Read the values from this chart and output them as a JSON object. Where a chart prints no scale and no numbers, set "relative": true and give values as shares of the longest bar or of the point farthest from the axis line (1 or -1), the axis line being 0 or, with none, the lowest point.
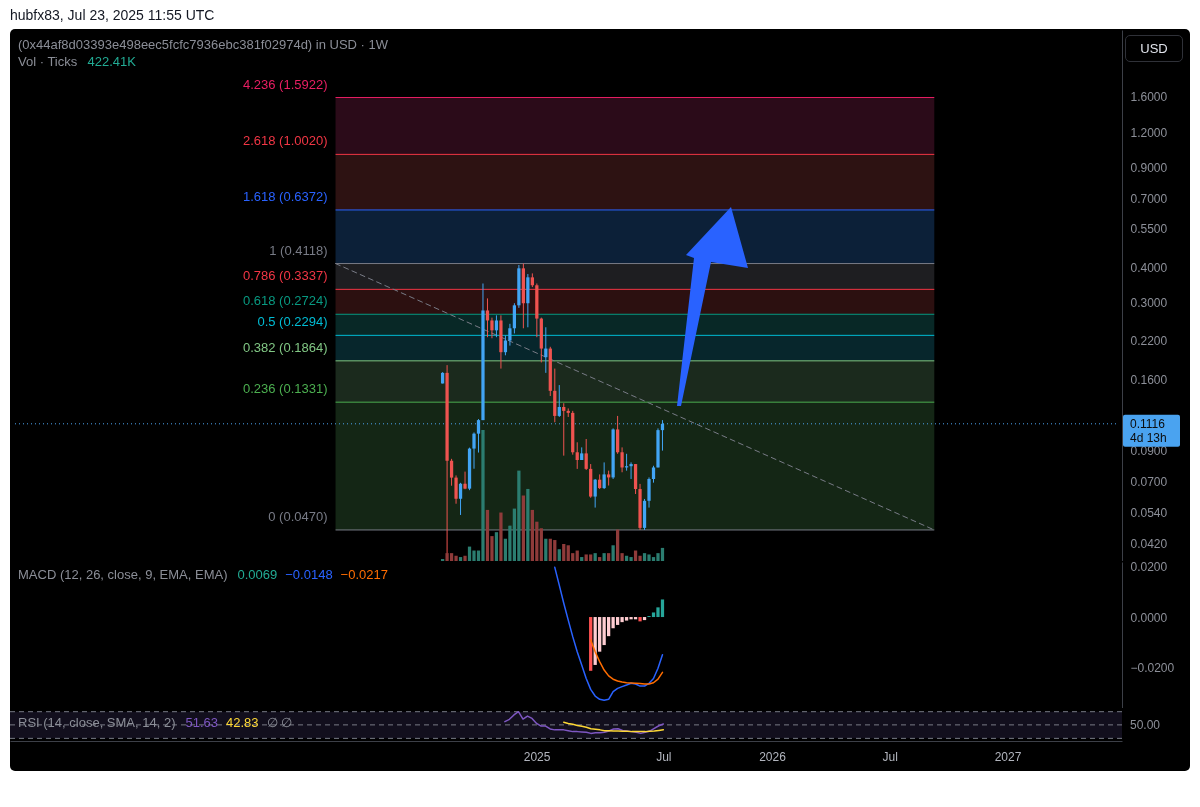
{
  "chart_data": [
    {
      "type": "candlestick",
      "title": "(0x44af8d03393e498eec5fcfc7936ebc381f02974d) in USD · 1W",
      "ylabel": "USD",
      "annotations": [
        "hubfx83, Jul 23, 2025 11:55 UTC",
        "4d 13h"
      ],
      "x": [
        "2024-08-12",
        "2024-08-19",
        "2024-08-26",
        "2024-09-02",
        "2024-09-09",
        "2024-09-16",
        "2024-09-23",
        "2024-09-30",
        "2024-10-07",
        "2024-10-14",
        "2024-10-21",
        "2024-10-28",
        "2024-11-04",
        "2024-11-11",
        "2024-11-18",
        "2024-11-25",
        "2024-12-02",
        "2024-12-09",
        "2024-12-16",
        "2024-12-23",
        "2024-12-30",
        "2025-01-06",
        "2025-01-13",
        "2025-01-20",
        "2025-01-27",
        "2025-02-03",
        "2025-02-10",
        "2025-02-17",
        "2025-02-24",
        "2025-03-03",
        "2025-03-10",
        "2025-03-17",
        "2025-03-24",
        "2025-03-31",
        "2025-04-07",
        "2025-04-14",
        "2025-04-21",
        "2025-04-28",
        "2025-05-05",
        "2025-05-12",
        "2025-05-19",
        "2025-05-26",
        "2025-06-02",
        "2025-06-09",
        "2025-06-16",
        "2025-06-23",
        "2025-06-30",
        "2025-07-07",
        "2025-07-14",
        "2025-07-21"
      ],
      "ohlc": [
        [
          0.155,
          0.17,
          0.155,
          0.169
        ],
        [
          0.169,
          0.18,
          0.0365,
          0.0826
        ],
        [
          0.0826,
          0.0839,
          0.0674,
          0.072
        ],
        [
          0.072,
          0.0733,
          0.0582,
          0.0606
        ],
        [
          0.0606,
          0.069,
          0.0531,
          0.0685
        ],
        [
          0.0685,
          0.0756,
          0.0655,
          0.0658
        ],
        [
          0.0658,
          0.0919,
          0.065,
          0.0912
        ],
        [
          0.0912,
          0.104,
          0.0774,
          0.103
        ],
        [
          0.103,
          0.116,
          0.0883,
          0.115
        ],
        [
          0.115,
          0.35,
          0.115,
          0.281
        ],
        [
          0.281,
          0.31,
          0.226,
          0.259
        ],
        [
          0.259,
          0.265,
          0.224,
          0.239
        ],
        [
          0.239,
          0.27,
          0.226,
          0.259
        ],
        [
          0.259,
          0.27,
          0.175,
          0.2
        ],
        [
          0.2,
          0.229,
          0.195,
          0.22
        ],
        [
          0.22,
          0.252,
          0.211,
          0.243
        ],
        [
          0.243,
          0.298,
          0.233,
          0.293
        ],
        [
          0.293,
          0.407,
          0.287,
          0.396
        ],
        [
          0.396,
          0.4118,
          0.243,
          0.298
        ],
        [
          0.298,
          0.378,
          0.245,
          0.368
        ],
        [
          0.368,
          0.38,
          0.34,
          0.345
        ],
        [
          0.345,
          0.35,
          0.226,
          0.263
        ],
        [
          0.263,
          0.265,
          0.184,
          0.206
        ],
        [
          0.192,
          0.245,
          0.169,
          0.206
        ],
        [
          0.206,
          0.209,
          0.14,
          0.146
        ],
        [
          0.146,
          0.175,
          0.113,
          0.119
        ],
        [
          0.119,
          0.153,
          0.118,
          0.128
        ],
        [
          0.128,
          0.132,
          0.0861,
          0.124
        ],
        [
          0.124,
          0.1265,
          0.118,
          0.122
        ],
        [
          0.122,
          0.124,
          0.0868,
          0.0885
        ],
        [
          0.0885,
          0.096,
          0.0773,
          0.0831
        ],
        [
          0.0831,
          0.0921,
          0.0831,
          0.0877
        ],
        [
          0.0877,
          0.0986,
          0.0766,
          0.0773
        ],
        [
          0.0773,
          0.0804,
          0.0611,
          0.0617
        ],
        [
          0.0617,
          0.0712,
          0.0564,
          0.0708
        ],
        [
          0.0708,
          0.0739,
          0.0656,
          0.0661
        ],
        [
          0.0661,
          0.0815,
          0.0656,
          0.0739
        ],
        [
          0.0739,
          0.0762,
          0.0675,
          0.0721
        ],
        [
          0.0721,
          0.1075,
          0.0712,
          0.1066
        ],
        [
          0.1066,
          0.119,
          0.0874,
          0.0885
        ],
        [
          0.0885,
          0.0921,
          0.0752,
          0.0782
        ],
        [
          0.0782,
          0.0874,
          0.0762,
          0.079
        ],
        [
          0.079,
          0.0815,
          0.0712,
          0.0804
        ],
        [
          0.0804,
          0.0804,
          0.063,
          0.0656
        ],
        [
          0.0656,
          0.0684,
          0.047,
          0.0478
        ],
        [
          0.0478,
          0.0605,
          0.047,
          0.0596
        ],
        [
          0.0596,
          0.0721,
          0.0564,
          0.0712
        ],
        [
          0.0712,
          0.0793,
          0.0691,
          0.0782
        ],
        [
          0.0782,
          0.1075,
          0.0782,
          0.106
        ],
        [
          0.106,
          0.115,
          0.0897,
          0.1116
        ]
      ],
      "colors": [
        "#42a5f5",
        "#ef5350",
        "#ef5350",
        "#ef5350",
        "#42a5f5",
        "#ef5350",
        "#42a5f5",
        "#42a5f5",
        "#42a5f5",
        "#42a5f5",
        "#ef5350",
        "#ef5350",
        "#42a5f5",
        "#ef5350",
        "#42a5f5",
        "#42a5f5",
        "#42a5f5",
        "#42a5f5",
        "#ef5350",
        "#42a5f5",
        "#ef5350",
        "#ef5350",
        "#ef5350",
        "#42a5f5",
        "#ef5350",
        "#ef5350",
        "#42a5f5",
        "#ef5350",
        "#ef5350",
        "#ef5350",
        "#ef5350",
        "#42a5f5",
        "#ef5350",
        "#ef5350",
        "#42a5f5",
        "#ef5350",
        "#42a5f5",
        "#ef5350",
        "#42a5f5",
        "#ef5350",
        "#ef5350",
        "#42a5f5",
        "#42a5f5",
        "#ef5350",
        "#ef5350",
        "#42a5f5",
        "#42a5f5",
        "#42a5f5",
        "#42a5f5",
        "#42a5f5"
      ],
      "series": [
        {
          "type": "line",
          "x": [
            "2024-02-27",
            "2026-09-18"
          ],
          "values": [
            0.4118,
            0.047
          ],
          "color": "#787b86",
          "line_style": "dashed"
        }
      ],
      "xlim": [
        "2022-10-15",
        "2027-06-30"
      ],
      "ylim": [
        0.0365,
        2.76
      ],
      "log": true,
      "tick_labels": "y",
      "yticks": [
        {
          "value": 1.6,
          "label": "1.6000"
        },
        {
          "value": 1.2,
          "label": "1.2000"
        },
        {
          "value": 0.9,
          "label": "0.9000"
        },
        {
          "value": 0.7,
          "label": "0.7000"
        },
        {
          "value": 0.55,
          "label": "0.5500"
        },
        {
          "value": 0.4,
          "label": "0.4000"
        },
        {
          "value": 0.3,
          "label": "0.3000"
        },
        {
          "value": 0.22,
          "label": "0.2200"
        },
        {
          "value": 0.16,
          "label": "0.1600"
        },
        {
          "value": 0.09,
          "label": "0.0900"
        },
        {
          "value": 0.07,
          "label": "0.0700"
        },
        {
          "value": 0.054,
          "label": "0.0540"
        },
        {
          "value": 0.042,
          "label": "0.0420"
        }
      ],
      "bands": [
        {
          "axis": "y",
          "from": 1.002,
          "to": 1.5922,
          "color": "#2b0b19"
        },
        {
          "axis": "y",
          "from": 0.6372,
          "to": 1.002,
          "color": "#2d1212"
        },
        {
          "axis": "y",
          "from": 0.4118,
          "to": 0.6372,
          "color": "#0c2038"
        },
        {
          "axis": "y",
          "from": 0.3337,
          "to": 0.4118,
          "color": "#1e1e21"
        },
        {
          "axis": "y",
          "from": 0.2724,
          "to": 0.3337,
          "color": "#2c1010"
        },
        {
          "axis": "y",
          "from": 0.2294,
          "to": 0.2724,
          "color": "#082826"
        },
        {
          "axis": "y",
          "from": 0.1864,
          "to": 0.2294,
          "color": "#07262c"
        },
        {
          "axis": "y",
          "from": 0.1331,
          "to": 0.1864,
          "color": "#1b2a1d"
        },
        {
          "axis": "y",
          "from": 0.047,
          "to": 0.1331,
          "color": "#142615"
        }
      ],
      "ref_lines": [
        {
          "axis": "y",
          "value": 1.5922,
          "label": "4.236 (1.5922)",
          "color": "#e91e63"
        },
        {
          "axis": "y",
          "value": 1.002,
          "label": "2.618 (1.0020)",
          "color": "#f23645"
        },
        {
          "axis": "y",
          "value": 0.6372,
          "label": "1.618 (0.6372)",
          "color": "#2962ff"
        },
        {
          "axis": "y",
          "value": 0.4118,
          "label": "1 (0.4118)",
          "color": "#787b86"
        },
        {
          "axis": "y",
          "value": 0.3337,
          "label": "0.786 (0.3337)",
          "color": "#f23645"
        },
        {
          "axis": "y",
          "value": 0.2724,
          "label": "0.618 (0.2724)",
          "color": "#089981"
        },
        {
          "axis": "y",
          "value": 0.2294,
          "label": "0.5 (0.2294)",
          "color": "#00bcd4"
        },
        {
          "axis": "y",
          "value": 0.1864,
          "label": "0.382 (0.1864)",
          "color": "#81c784"
        },
        {
          "axis": "y",
          "value": 0.1331,
          "label": "0.236 (0.1331)",
          "color": "#4caf50"
        },
        {
          "axis": "y",
          "value": 0.047,
          "label": "0 (0.0470)",
          "color": "#787b86"
        },
        {
          "axis": "y",
          "value": 0.1116,
          "label": "0.1116",
          "color": "#4aa3f0",
          "line_style": "dotted"
        }
      ]
    },
    {
      "type": "bar",
      "relative": true,
      "title": "Vol · Ticks",
      "tick_labels": false,
      "xlim": [
        "2022-10-15",
        "2027-06-30"
      ],
      "series": [
        {
          "name": "422.41K",
          "color": "#22ab94",
          "x": [
            "2024-08-12",
            "2024-08-19",
            "2024-08-26",
            "2024-09-02",
            "2024-09-09",
            "2024-09-16",
            "2024-09-23",
            "2024-09-30",
            "2024-10-07",
            "2024-10-14",
            "2024-10-21",
            "2024-10-28",
            "2024-11-04",
            "2024-11-11",
            "2024-11-18",
            "2024-11-25",
            "2024-12-02",
            "2024-12-09",
            "2024-12-16",
            "2024-12-23",
            "2024-12-30",
            "2025-01-06",
            "2025-01-13",
            "2025-01-20",
            "2025-01-27",
            "2025-02-03",
            "2025-02-10",
            "2025-02-17",
            "2025-02-24",
            "2025-03-03",
            "2025-03-10",
            "2025-03-17",
            "2025-03-24",
            "2025-03-31",
            "2025-04-07",
            "2025-04-14",
            "2025-04-21",
            "2025-04-28",
            "2025-05-05",
            "2025-05-12",
            "2025-05-19",
            "2025-05-26",
            "2025-06-02",
            "2025-06-09",
            "2025-06-16",
            "2025-06-23",
            "2025-06-30",
            "2025-07-07",
            "2025-07-14",
            "2025-07-21"
          ],
          "values": [
            0.015,
            0.06,
            0.06,
            0.04,
            0.03,
            0.04,
            0.11,
            0.08,
            0.08,
            1,
            0.39,
            0.19,
            0.22,
            0.37,
            0.17,
            0.27,
            0.4,
            0.69,
            0.5,
            0.55,
            0.39,
            0.3,
            0.25,
            0.17,
            0.17,
            0.16,
            0.09,
            0.13,
            0.12,
            0.06,
            0.08,
            0.03,
            0.05,
            0.05,
            0.06,
            0.03,
            0.06,
            0.06,
            0.12,
            0.24,
            0.06,
            0.04,
            0.03,
            0.08,
            0.04,
            0.06,
            0.05,
            0.03,
            0.06,
            0.1
          ],
          "colors": [
            "#2b7d70",
            "#8f3b3a",
            "#8f3b3a",
            "#8f3b3a",
            "#2b7d70",
            "#8f3b3a",
            "#2b7d70",
            "#2b7d70",
            "#2b7d70",
            "#2b7d70",
            "#8f3b3a",
            "#8f3b3a",
            "#2b7d70",
            "#8f3b3a",
            "#2b7d70",
            "#2b7d70",
            "#2b7d70",
            "#2b7d70",
            "#8f3b3a",
            "#2b7d70",
            "#8f3b3a",
            "#8f3b3a",
            "#8f3b3a",
            "#2b7d70",
            "#8f3b3a",
            "#8f3b3a",
            "#2b7d70",
            "#8f3b3a",
            "#8f3b3a",
            "#8f3b3a",
            "#8f3b3a",
            "#2b7d70",
            "#8f3b3a",
            "#8f3b3a",
            "#2b7d70",
            "#8f3b3a",
            "#2b7d70",
            "#8f3b3a",
            "#2b7d70",
            "#8f3b3a",
            "#8f3b3a",
            "#2b7d70",
            "#2b7d70",
            "#8f3b3a",
            "#8f3b3a",
            "#2b7d70",
            "#2b7d70",
            "#2b7d70",
            "#2b7d70",
            "#2b7d70"
          ]
        }
      ]
    },
    {
      "type": "bar",
      "title": "MACD (12, 26, close, 9, EMA, EMA)",
      "tick_labels": "y",
      "xlim": [
        "2022-10-15",
        "2027-06-30"
      ],
      "ylim": [
        -0.0357,
        0.0216
      ],
      "yticks": [
        {
          "value": 0.02,
          "label": "0.0200"
        },
        {
          "value": 0,
          "label": "0.0000"
        },
        {
          "value": -0.02,
          "label": "−0.0200"
        }
      ],
      "series": [
        {
          "name": "0.0069",
          "type": "bar",
          "color": "#22ab94",
          "x": [
            "2025-03-31",
            "2025-04-07",
            "2025-04-14",
            "2025-04-21",
            "2025-04-28",
            "2025-05-05",
            "2025-05-12",
            "2025-05-19",
            "2025-05-26",
            "2025-06-02",
            "2025-06-09",
            "2025-06-16",
            "2025-06-23",
            "2025-06-30",
            "2025-07-07",
            "2025-07-14",
            "2025-07-21"
          ],
          "values": [
            -0.0211,
            -0.0188,
            -0.0136,
            -0.011,
            -0.0075,
            -0.0044,
            -0.0031,
            -0.002,
            -0.0014,
            -0.0009,
            -0.0009,
            -0.0017,
            -0.0012,
            0.0004,
            0.0018,
            0.0038,
            0.0069
          ],
          "colors": [
            "#ff5252",
            "#ffcdd2",
            "#ffcdd2",
            "#ffcdd2",
            "#ffcdd2",
            "#ffcdd2",
            "#ffcdd2",
            "#ffcdd2",
            "#ffcdd2",
            "#ffcdd2",
            "#ffcdd2",
            "#ff5252",
            "#ffcdd2",
            "#26a69a",
            "#26a69a",
            "#26a69a",
            "#26a69a"
          ]
        },
        {
          "name": "−0.0148",
          "type": "line",
          "color": "#2962ff",
          "x": [
            "2025-02-03",
            "2025-02-10",
            "2025-02-17",
            "2025-02-24",
            "2025-03-03",
            "2025-03-10",
            "2025-03-17",
            "2025-03-24",
            "2025-03-31",
            "2025-04-07",
            "2025-04-14",
            "2025-04-21",
            "2025-04-28",
            "2025-05-05",
            "2025-05-12",
            "2025-05-19",
            "2025-05-26",
            "2025-06-02",
            "2025-06-09",
            "2025-06-16",
            "2025-06-23",
            "2025-06-30",
            "2025-07-07",
            "2025-07-14",
            "2025-07-21"
          ],
          "values": [
            0.0195,
            0.0125,
            0.0054,
            -0.0012,
            -0.0077,
            -0.0136,
            -0.0188,
            -0.0241,
            -0.0284,
            -0.031,
            -0.0323,
            -0.0327,
            -0.0323,
            -0.0293,
            -0.028,
            -0.0273,
            -0.0267,
            -0.026,
            -0.0263,
            -0.0271,
            -0.0271,
            -0.026,
            -0.0241,
            -0.0201,
            -0.0148
          ]
        },
        {
          "name": "−0.0217",
          "type": "line",
          "color": "#ff6d00",
          "x": [
            "2025-03-31",
            "2025-04-07",
            "2025-04-14",
            "2025-04-21",
            "2025-04-28",
            "2025-05-05",
            "2025-05-12",
            "2025-05-19",
            "2025-05-26",
            "2025-06-02",
            "2025-06-09",
            "2025-06-16",
            "2025-06-23",
            "2025-06-30",
            "2025-07-07",
            "2025-07-14",
            "2025-07-21"
          ],
          "values": [
            -0.009,
            -0.0136,
            -0.0175,
            -0.0208,
            -0.0231,
            -0.0244,
            -0.0251,
            -0.0255,
            -0.0258,
            -0.0259,
            -0.026,
            -0.0261,
            -0.0263,
            -0.0263,
            -0.0258,
            -0.0244,
            -0.0217
          ]
        }
      ]
    },
    {
      "type": "line",
      "relative": true,
      "title": "RSI (14, close, SMA, 14, 2)",
      "annotations": [
        "∅ ∅",
        "50.00"
      ],
      "xlim": [
        "2022-10-15",
        "2027-06-30"
      ],
      "xticks": [
        {
          "value": "2025-01-06",
          "label": "2025"
        },
        {
          "value": "2025-07-21",
          "label": "Jul"
        },
        {
          "value": "2026-01-05",
          "label": "2026"
        },
        {
          "value": "2026-07-06",
          "label": "Jul"
        },
        {
          "value": "2027-01-04",
          "label": "2027"
        }
      ],
      "bands": [
        {
          "axis": "y",
          "from": 0.09,
          "to": 1,
          "color": "#120f1d"
        }
      ],
      "ref_lines": [
        {
          "axis": "y",
          "value": 1,
          "color": "#787b86",
          "line_style": "dashed"
        },
        {
          "axis": "y",
          "value": 0.55,
          "color": "#787b86",
          "line_style": "dashed"
        },
        {
          "axis": "y",
          "value": 0.09,
          "color": "#787b86",
          "line_style": "dashed"
        }
      ],
      "series": [
        {
          "name": "51.63",
          "color": "#7e57c2",
          "x": [
            "2024-11-18",
            "2024-11-25",
            "2024-12-02",
            "2024-12-09",
            "2024-12-16",
            "2024-12-23",
            "2024-12-30",
            "2025-01-06",
            "2025-01-13",
            "2025-01-20",
            "2025-01-27",
            "2025-02-03",
            "2025-02-10",
            "2025-02-17",
            "2025-02-24",
            "2025-03-03",
            "2025-03-10",
            "2025-03-17",
            "2025-03-24",
            "2025-03-31",
            "2025-04-07",
            "2025-04-14",
            "2025-04-21",
            "2025-04-28",
            "2025-05-05",
            "2025-05-12",
            "2025-05-19",
            "2025-05-26",
            "2025-06-02",
            "2025-06-09",
            "2025-06-16",
            "2025-06-23",
            "2025-06-30",
            "2025-07-07",
            "2025-07-14",
            "2025-07-21"
          ],
          "values": [
            0.66,
            0.74,
            0.89,
            1,
            0.75,
            0.85,
            0.77,
            0.6,
            0.51,
            0.51,
            0.41,
            0.38,
            0.38,
            0.38,
            0.35,
            0.32,
            0.32,
            0.31,
            0.3,
            0.26,
            0.28,
            0.28,
            0.3,
            0.34,
            0.41,
            0.42,
            0.36,
            0.34,
            0.32,
            0.3,
            0.26,
            0.3,
            0.34,
            0.43,
            0.52,
            0.58
          ]
        },
        {
          "name": "42.83",
          "color": "#fdd835",
          "x": [
            "2025-02-17",
            "2025-02-24",
            "2025-03-03",
            "2025-03-10",
            "2025-03-17",
            "2025-03-24",
            "2025-03-31",
            "2025-04-07",
            "2025-04-14",
            "2025-04-21",
            "2025-04-28",
            "2025-05-05",
            "2025-05-12",
            "2025-05-19",
            "2025-05-26",
            "2025-06-02",
            "2025-06-09",
            "2025-06-16",
            "2025-06-23",
            "2025-06-30",
            "2025-07-07",
            "2025-07-14",
            "2025-07-21"
          ],
          "values": [
            0.64,
            0.6,
            0.57,
            0.53,
            0.5,
            0.47,
            0.42,
            0.4,
            0.38,
            0.35,
            0.35,
            0.34,
            0.34,
            0.33,
            0.33,
            0.32,
            0.32,
            0.32,
            0.32,
            0.33,
            0.34,
            0.36,
            0.38
          ]
        }
      ]
    }
  ]
}
